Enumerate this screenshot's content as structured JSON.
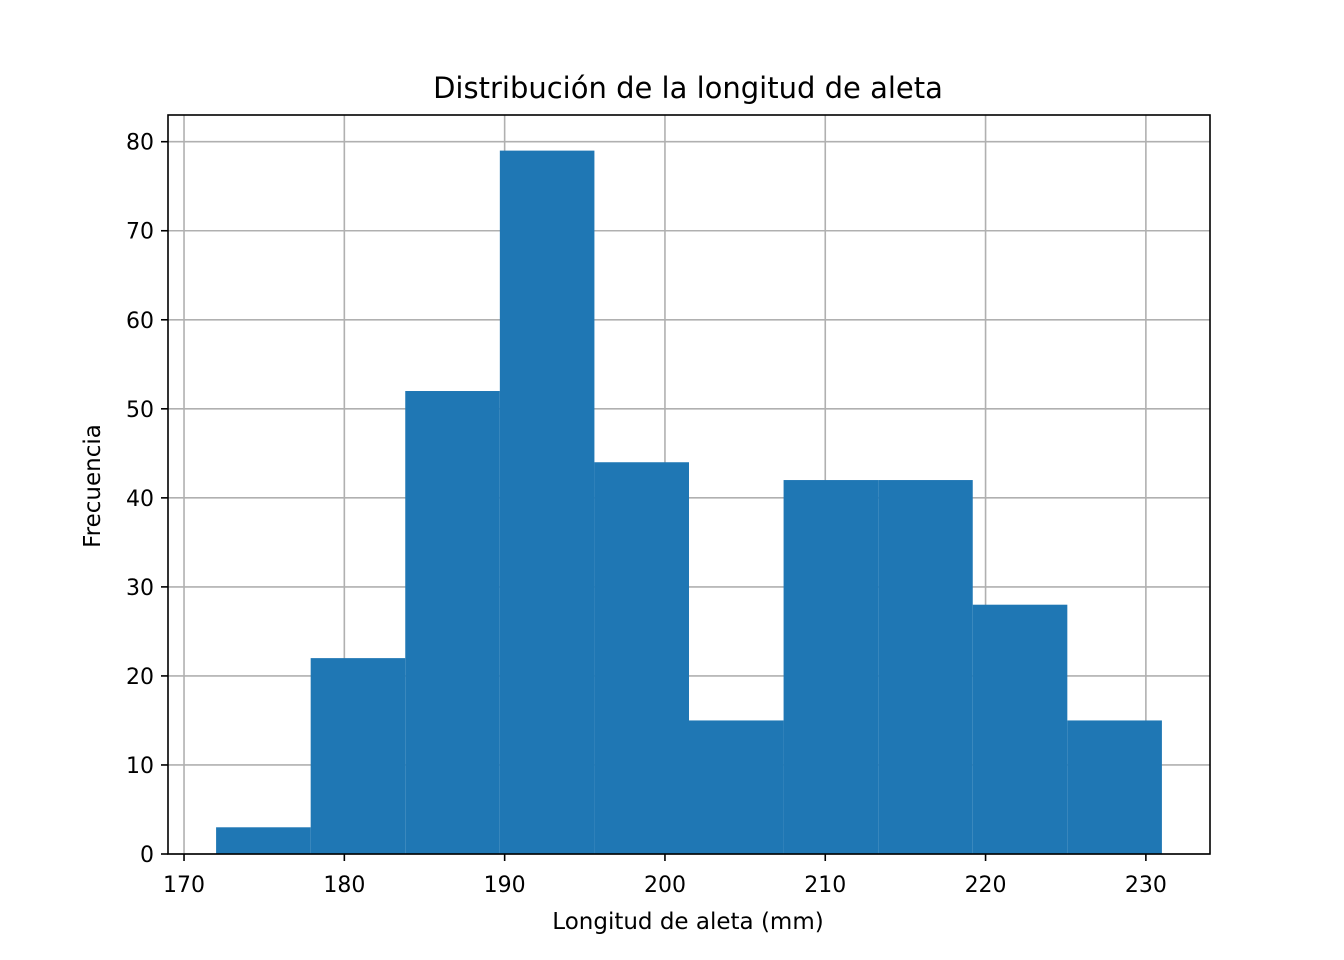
{
  "chart_data": {
    "type": "bar",
    "title": "Distribución de la longitud de aleta",
    "xlabel": "Longitud de aleta (mm)",
    "ylabel": "Frecuencia",
    "bin_edges": [
      172,
      177.9,
      183.8,
      189.7,
      195.6,
      201.5,
      207.4,
      213.3,
      219.2,
      225.1,
      231
    ],
    "values": [
      3,
      22,
      52,
      79,
      44,
      15,
      42,
      42,
      28,
      15
    ],
    "xlim": [
      169,
      234
    ],
    "ylim": [
      0,
      83
    ],
    "xticks": [
      "170",
      "180",
      "190",
      "200",
      "210",
      "220",
      "230"
    ],
    "yticks": [
      "0",
      "10",
      "20",
      "30",
      "40",
      "50",
      "60",
      "70",
      "80"
    ],
    "grid": true,
    "bar_color": "#1f77b4",
    "grid_color": "#b0b0b0"
  }
}
